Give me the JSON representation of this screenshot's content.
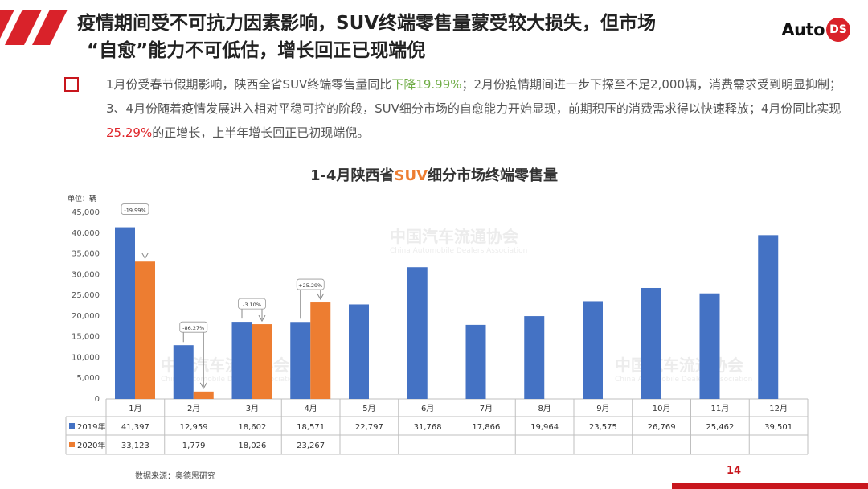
{
  "header": {
    "title_line1": "疫情期间受不可抗力因素影响，SUV终端零售量蒙受较大损失，但市场",
    "title_line2": "“自愈”能力不可低估，增长回正已现端倪",
    "logo_text": "Auto",
    "logo_badge": "DS"
  },
  "body": {
    "part1": "1月份受春节假期影响，陕西全省SUV终端零售量同比",
    "highlight1": "下降19.99%",
    "part2": "；2月份疫情期间进一步下探至不足2,000辆，消费需求受到明显抑制；3、4月份随着疫情发展进入相对平稳可控的阶段，SUV细分市场的自愈能力开始显现，前期积压的消费需求得以快速释放；4月份同比实现",
    "highlight2": "25.29%",
    "part3": "的正增长，上半年增长回正已初现端倪。"
  },
  "watermark": {
    "cn": "中国汽车流通协会",
    "en": "China Automobile Dealers Association"
  },
  "chart_data": {
    "type": "bar",
    "title_prefix": "1-4月陕西省",
    "title_highlight": "SUV",
    "title_suffix": "细分市场终端零售量",
    "unit_label": "单位：辆",
    "categories": [
      "1月",
      "2月",
      "3月",
      "4月",
      "5月",
      "6月",
      "7月",
      "8月",
      "9月",
      "10月",
      "11月",
      "12月"
    ],
    "ylim": [
      0,
      45000
    ],
    "yticks": [
      "0",
      "5,000",
      "10,000",
      "15,000",
      "20,000",
      "25,000",
      "30,000",
      "35,000",
      "40,000",
      "45,000"
    ],
    "grid": false,
    "legend": "table-below",
    "series": [
      {
        "name": "2019年",
        "color": "#4472c4",
        "values": [
          41397,
          12959,
          18602,
          18571,
          22797,
          31768,
          17866,
          19964,
          23575,
          26769,
          25462,
          39501
        ],
        "labels": [
          "41,397",
          "12,959",
          "18,602",
          "18,571",
          "22,797",
          "31,768",
          "17,866",
          "19,964",
          "23,575",
          "26,769",
          "25,462",
          "39,501"
        ]
      },
      {
        "name": "2020年",
        "color": "#ed7d31",
        "values": [
          33123,
          1779,
          18026,
          23267,
          null,
          null,
          null,
          null,
          null,
          null,
          null,
          null
        ],
        "labels": [
          "33,123",
          "1,779",
          "18,026",
          "23,267",
          "",
          "",
          "",
          "",
          "",
          "",
          "",
          ""
        ]
      }
    ],
    "annotations": [
      {
        "index": 0,
        "text": "-19.99%"
      },
      {
        "index": 1,
        "text": "-86.27%"
      },
      {
        "index": 2,
        "text": "-3.10%"
      },
      {
        "index": 3,
        "text": "+25.29%"
      }
    ]
  },
  "footer": {
    "source": "数据来源：奥德思研究",
    "page": "14"
  },
  "colors": {
    "accent": "#c8161d",
    "series2019": "#4472c4",
    "series2020": "#ed7d31",
    "green": "#70ad47"
  }
}
